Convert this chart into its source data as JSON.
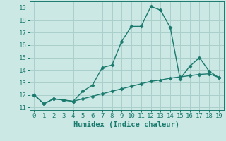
{
  "line1_x": [
    0,
    1,
    2,
    3,
    4,
    5,
    6,
    7,
    8,
    9,
    10,
    11,
    12,
    13,
    14,
    15,
    16,
    17,
    18,
    19
  ],
  "line1_y": [
    12.0,
    11.3,
    11.7,
    11.6,
    11.5,
    12.3,
    12.8,
    14.2,
    14.4,
    16.3,
    17.5,
    17.5,
    19.1,
    18.8,
    17.4,
    13.3,
    14.3,
    15.0,
    13.9,
    13.4
  ],
  "line2_x": [
    0,
    1,
    2,
    3,
    4,
    5,
    6,
    7,
    8,
    9,
    10,
    11,
    12,
    13,
    14,
    15,
    16,
    17,
    18,
    19
  ],
  "line2_y": [
    12.0,
    11.3,
    11.7,
    11.6,
    11.5,
    11.7,
    11.9,
    12.1,
    12.3,
    12.5,
    12.7,
    12.9,
    13.1,
    13.2,
    13.35,
    13.45,
    13.55,
    13.65,
    13.7,
    13.4
  ],
  "color": "#1a7a6e",
  "bg_color": "#cce8e4",
  "grid_color": "#aad0cc",
  "xlabel": "Humidex (Indice chaleur)",
  "xlim": [
    -0.5,
    19.5
  ],
  "ylim": [
    10.8,
    19.5
  ],
  "xticks": [
    0,
    1,
    2,
    3,
    4,
    5,
    6,
    7,
    8,
    9,
    10,
    11,
    12,
    13,
    14,
    15,
    16,
    17,
    18,
    19
  ],
  "yticks": [
    11,
    12,
    13,
    14,
    15,
    16,
    17,
    18,
    19
  ],
  "marker": "D",
  "markersize": 2.5,
  "linewidth": 1.0,
  "tick_fontsize": 6.5,
  "xlabel_fontsize": 7.5
}
